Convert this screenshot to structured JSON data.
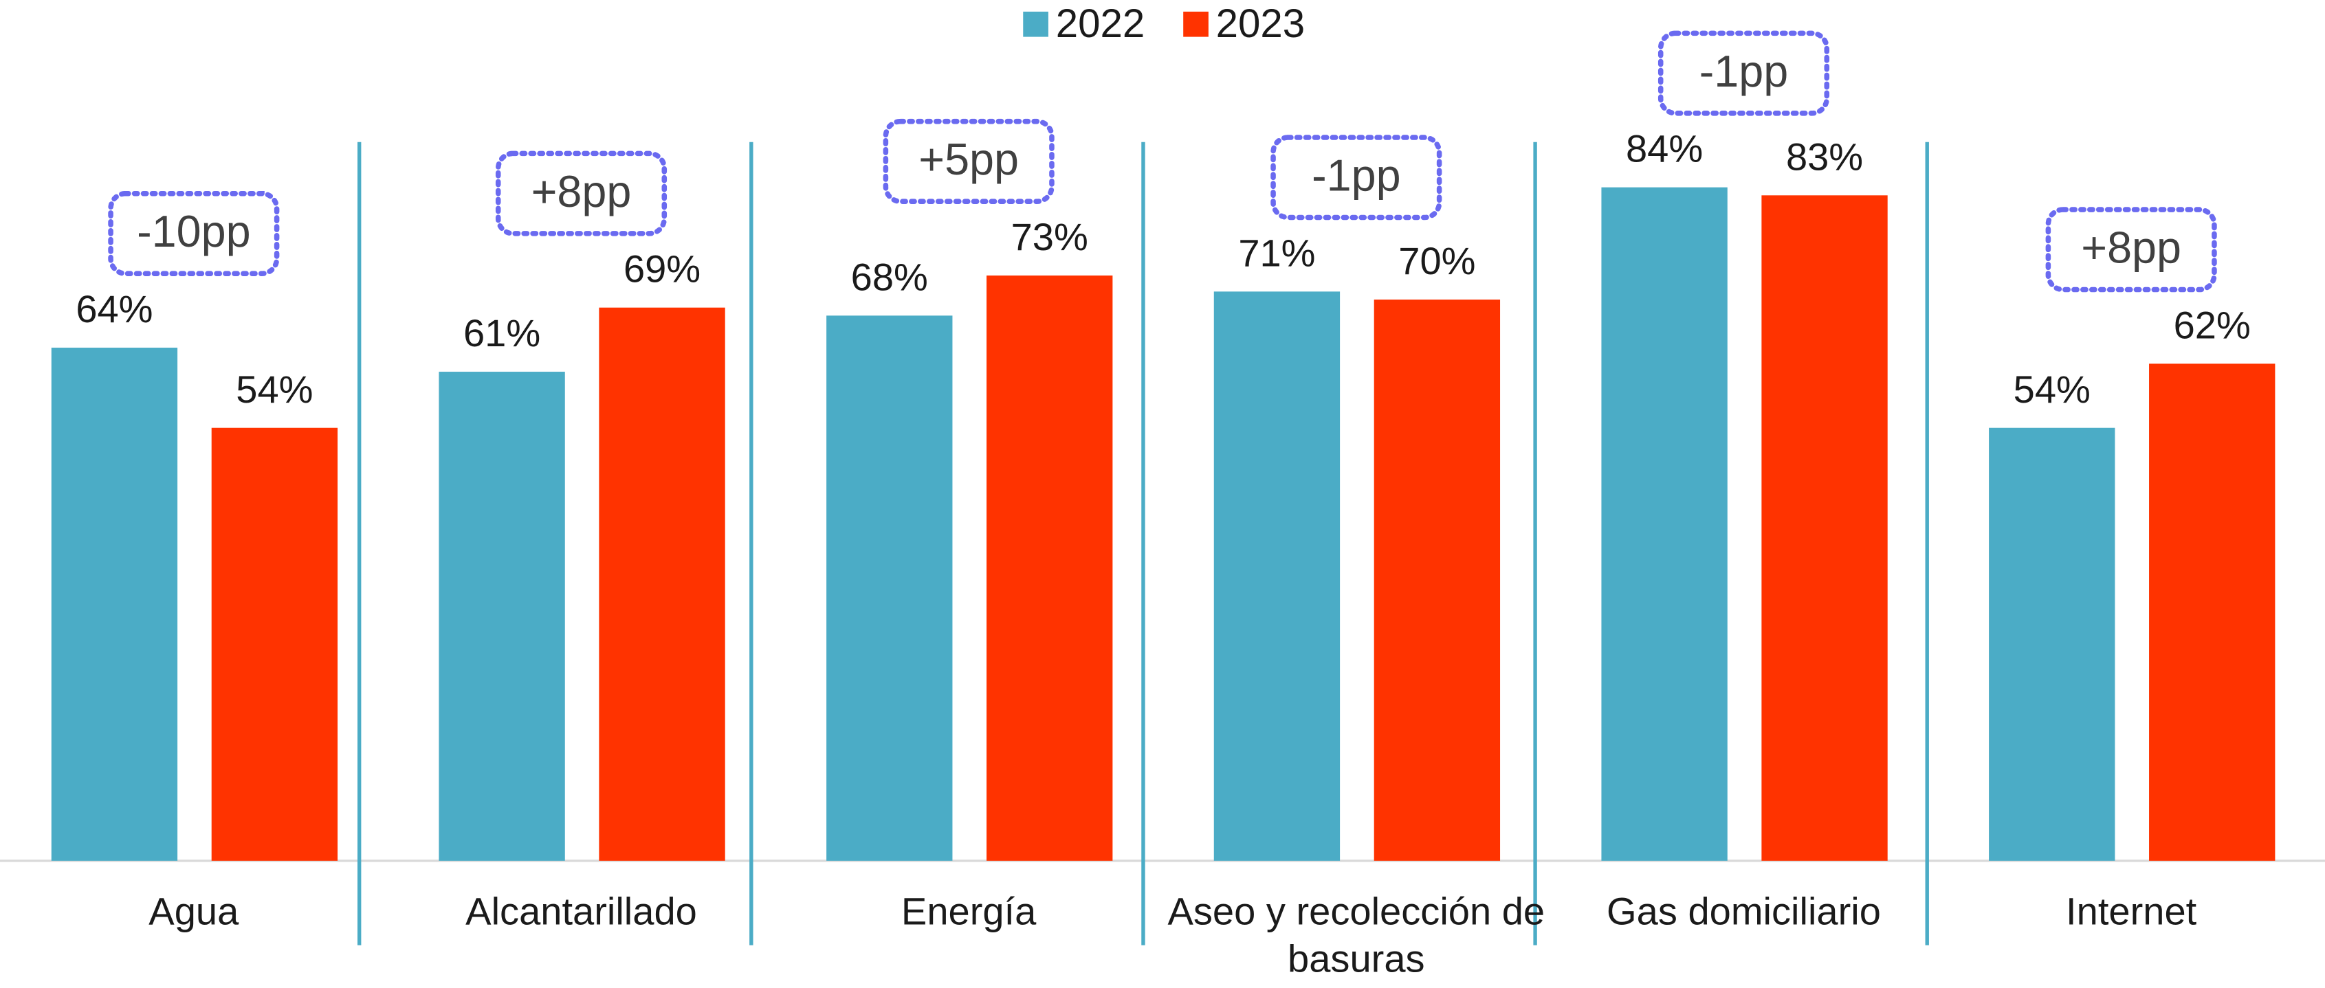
{
  "chart_data": {
    "type": "bar",
    "categories": [
      "Agua",
      "Alcantarillado",
      "Energía",
      "Aseo y recolección de basuras",
      "Gas domiciliario",
      "Internet"
    ],
    "series": [
      {
        "name": "2022",
        "color": "#4bacc6",
        "values": [
          64,
          61,
          68,
          71,
          84,
          54
        ],
        "value_labels": [
          "64%",
          "61%",
          "68%",
          "71%",
          "84%",
          "54%"
        ]
      },
      {
        "name": "2023",
        "color": "#ff3300",
        "values": [
          54,
          69,
          73,
          70,
          83,
          62
        ],
        "value_labels": [
          "54%",
          "69%",
          "73%",
          "70%",
          "83%",
          "62%"
        ]
      }
    ],
    "annotations": [
      "-10pp",
      "+8pp",
      "+5pp",
      "-1pp",
      "-1pp",
      "+8pp"
    ],
    "ylim": [
      0,
      100
    ],
    "legend": "top"
  }
}
